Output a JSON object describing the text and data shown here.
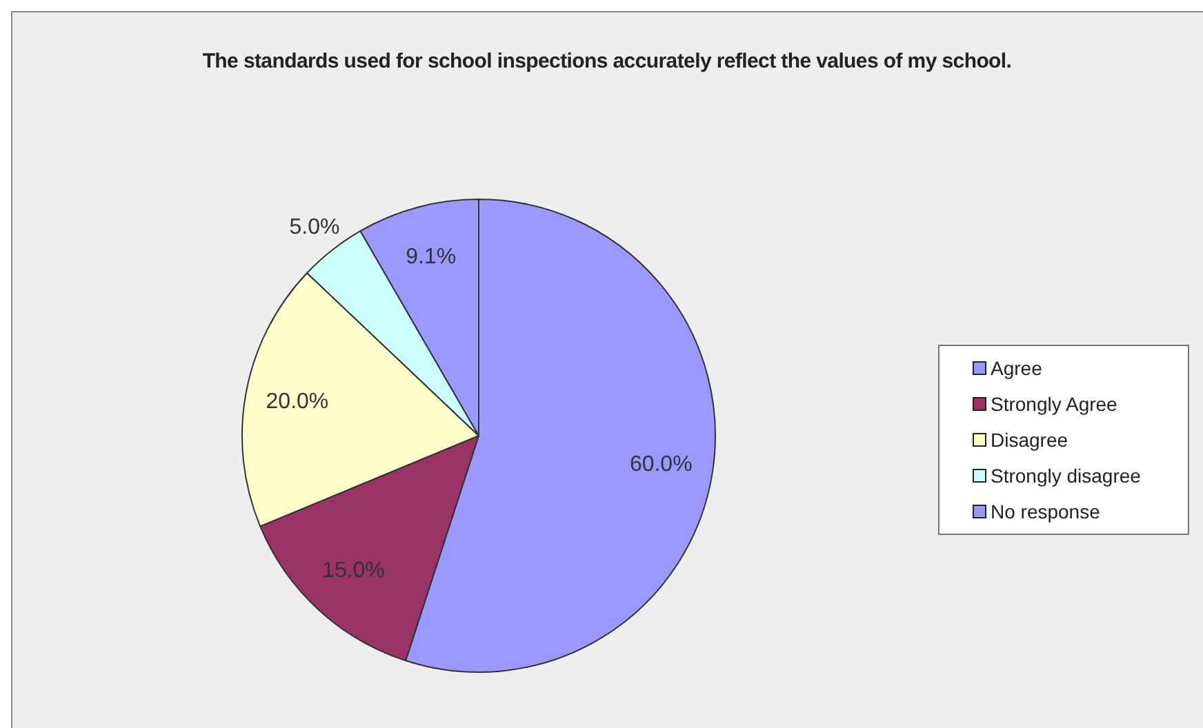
{
  "chart_data": {
    "type": "pie",
    "title": "The standards used for school inspections accurately reflect the values of my school.",
    "categories": [
      "Agree",
      "Strongly Agree",
      "Disagree",
      "Strongly disagree",
      "No response"
    ],
    "values": [
      60.0,
      15.0,
      20.0,
      5.0,
      9.1
    ],
    "value_labels": [
      "60.0%",
      "15.0%",
      "20.0%",
      "5.0%",
      "9.1%"
    ],
    "colors": [
      "#9999ff",
      "#993366",
      "#ffffcc",
      "#ccffff",
      "#9999ff"
    ],
    "legend": "right"
  }
}
